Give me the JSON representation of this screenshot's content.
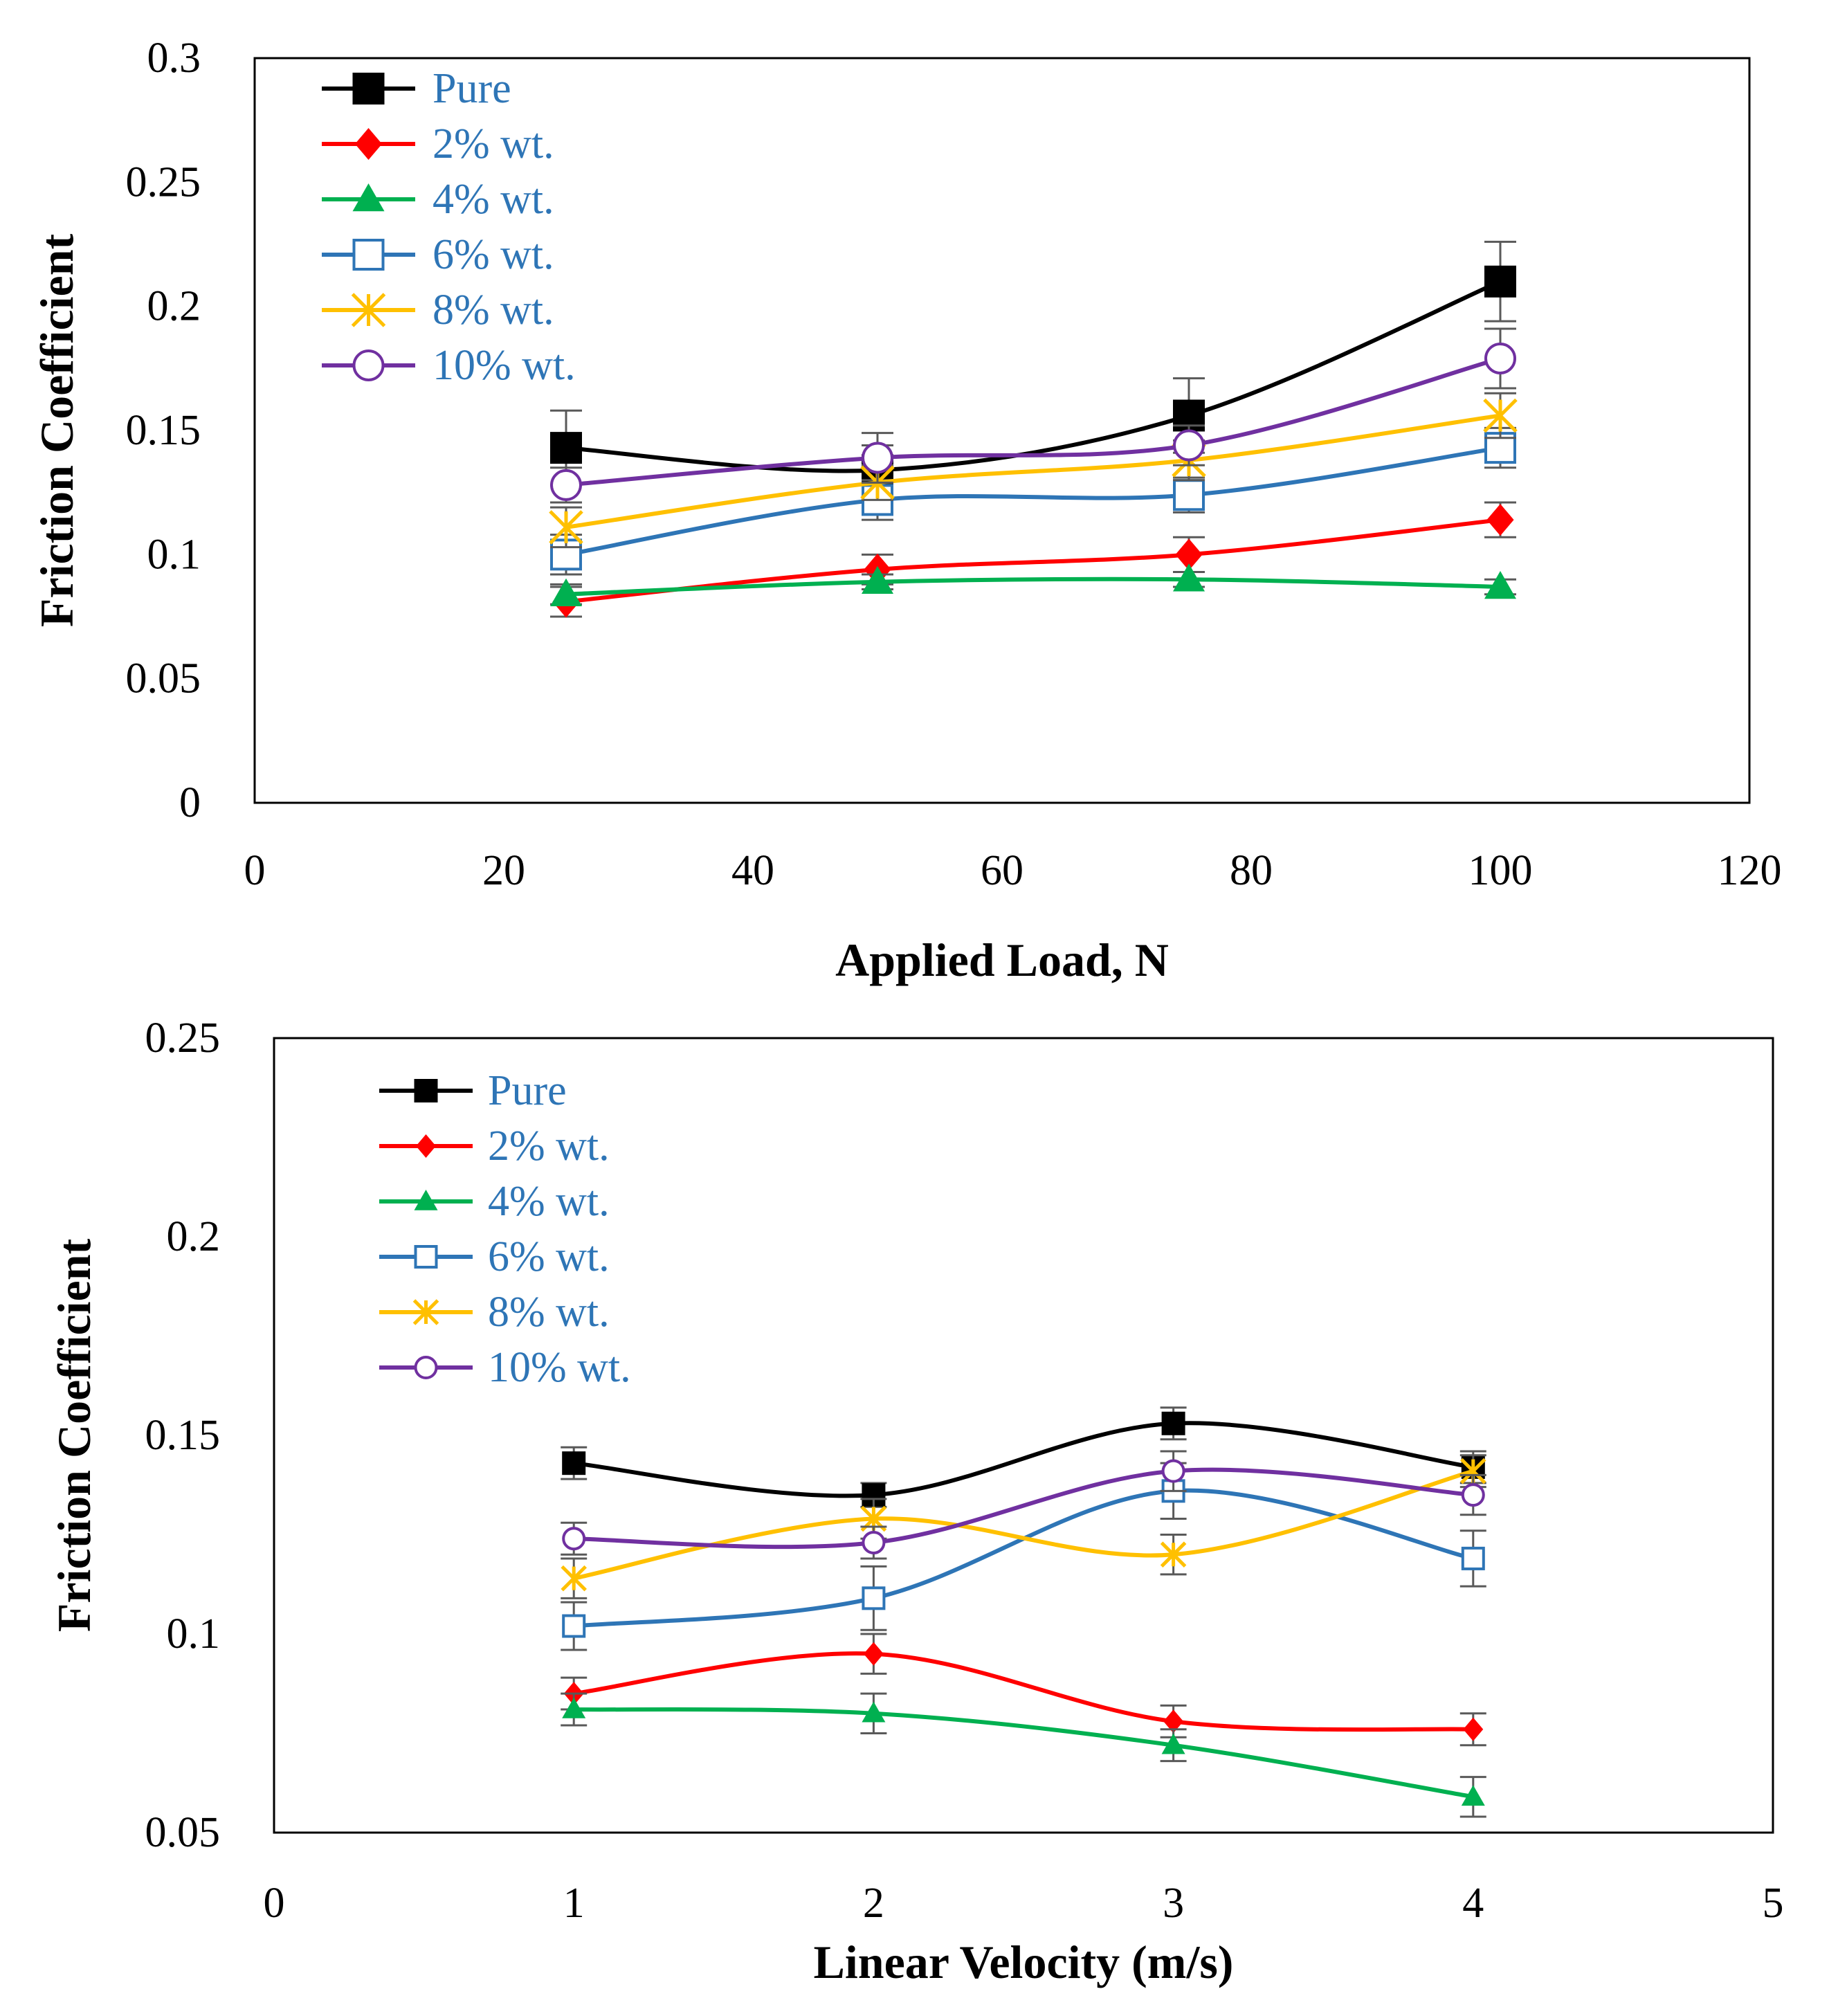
{
  "chart_data": [
    {
      "type": "line",
      "xlabel": "Applied Load, N",
      "ylabel": "Friction Coefficient",
      "xlim": [
        0,
        120
      ],
      "ylim": [
        0,
        0.3
      ],
      "x_ticks": [
        "0",
        "20",
        "40",
        "60",
        "80",
        "100",
        "120"
      ],
      "y_ticks": [
        "0",
        "0.05",
        "0.1",
        "0.15",
        "0.2",
        "0.25",
        "0.3"
      ],
      "x": [
        25,
        50,
        75,
        100
      ],
      "legend_position": "top-left",
      "series": [
        {
          "name": "Pure",
          "color": "#000000",
          "marker": "square-filled",
          "values": [
            0.143,
            0.134,
            0.156,
            0.21
          ],
          "errors": [
            0.015,
            0.01,
            0.015,
            0.016
          ]
        },
        {
          "name": "2% wt.",
          "color": "#FF0000",
          "marker": "diamond-filled",
          "values": [
            0.081,
            0.094,
            0.1,
            0.114
          ],
          "errors": [
            0.006,
            0.006,
            0.007,
            0.007
          ]
        },
        {
          "name": "4% wt.",
          "color": "#00B050",
          "marker": "triangle-filled",
          "values": [
            0.084,
            0.089,
            0.09,
            0.087
          ],
          "errors": [
            0.004,
            0.003,
            0.003,
            0.003
          ]
        },
        {
          "name": "6% wt.",
          "color": "#2E75B6",
          "marker": "square-open",
          "values": [
            0.1,
            0.122,
            0.124,
            0.143
          ],
          "errors": [
            0.008,
            0.008,
            0.007,
            0.008
          ]
        },
        {
          "name": "8% wt.",
          "color": "#FFC000",
          "marker": "asterisk",
          "values": [
            0.111,
            0.129,
            0.138,
            0.156
          ],
          "errors": [
            0.008,
            0.007,
            0.008,
            0.009
          ]
        },
        {
          "name": "10% wt.",
          "color": "#7030A0",
          "marker": "circle-open",
          "values": [
            0.128,
            0.139,
            0.144,
            0.179
          ],
          "errors": [
            0.007,
            0.01,
            0.008,
            0.012
          ]
        }
      ]
    },
    {
      "type": "line",
      "xlabel": "Linear Velocity (m/s)",
      "ylabel": "Friction Coefficient",
      "xlim": [
        0,
        5
      ],
      "ylim": [
        0.05,
        0.25
      ],
      "x_ticks": [
        "0",
        "1",
        "2",
        "3",
        "4",
        "5"
      ],
      "y_ticks": [
        "0.05",
        "0.1",
        "0.15",
        "0.2",
        "0.25"
      ],
      "x": [
        1,
        2,
        3,
        4
      ],
      "legend_position": "top-left",
      "series": [
        {
          "name": "Pure",
          "color": "#000000",
          "marker": "square-filled",
          "values": [
            0.143,
            0.135,
            0.153,
            0.142
          ],
          "errors": [
            0.004,
            0.003,
            0.004,
            0.004
          ]
        },
        {
          "name": "2% wt.",
          "color": "#FF0000",
          "marker": "diamond-filled",
          "values": [
            0.085,
            0.095,
            0.078,
            0.076
          ],
          "errors": [
            0.004,
            0.005,
            0.004,
            0.004
          ]
        },
        {
          "name": "4% wt.",
          "color": "#00B050",
          "marker": "triangle-filled",
          "values": [
            0.081,
            0.08,
            0.072,
            0.059
          ],
          "errors": [
            0.004,
            0.005,
            0.004,
            0.005
          ]
        },
        {
          "name": "6% wt.",
          "color": "#2E75B6",
          "marker": "square-open",
          "values": [
            0.102,
            0.109,
            0.136,
            0.119
          ],
          "errors": [
            0.006,
            0.008,
            0.007,
            0.007
          ]
        },
        {
          "name": "8% wt.",
          "color": "#FFC000",
          "marker": "asterisk",
          "values": [
            0.114,
            0.129,
            0.12,
            0.141
          ],
          "errors": [
            0.005,
            0.005,
            0.005,
            0.004
          ]
        },
        {
          "name": "10% wt.",
          "color": "#7030A0",
          "marker": "circle-open",
          "values": [
            0.124,
            0.123,
            0.141,
            0.135
          ],
          "errors": [
            0.004,
            0.004,
            0.005,
            0.005
          ]
        }
      ]
    }
  ]
}
